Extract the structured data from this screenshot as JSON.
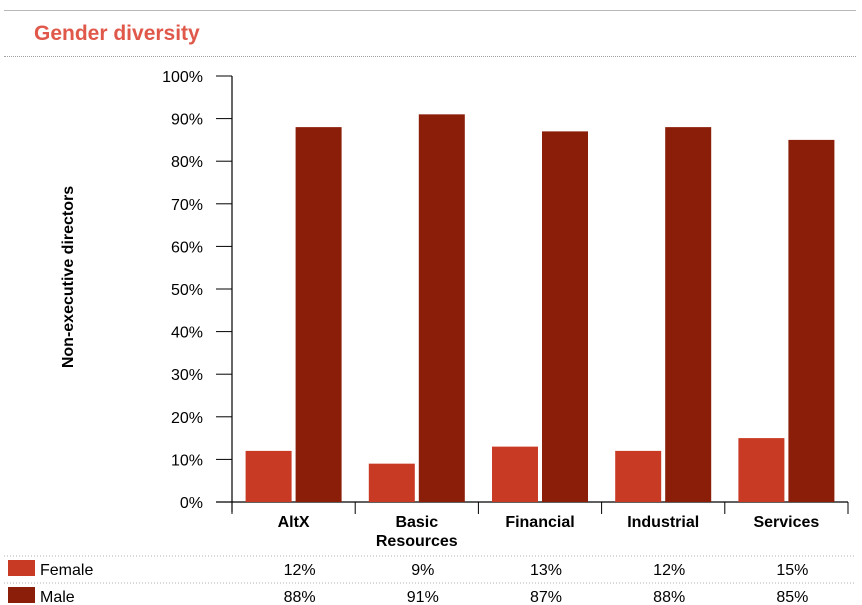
{
  "title": "Gender diversity",
  "colors": {
    "title": "#e0584a",
    "female": "#c93a24",
    "male": "#8b1e08"
  },
  "chart_data": {
    "type": "bar",
    "categories": [
      "AltX",
      "Basic Resources",
      "Financial",
      "Industrial",
      "Services"
    ],
    "category_lines": [
      [
        "AltX"
      ],
      [
        "Basic",
        "Resources"
      ],
      [
        "Financial"
      ],
      [
        "Industrial"
      ],
      [
        "Services"
      ]
    ],
    "series": [
      {
        "name": "Female",
        "values": [
          12,
          9,
          13,
          12,
          15
        ],
        "labels": [
          "12%",
          "9%",
          "13%",
          "12%",
          "15%"
        ]
      },
      {
        "name": "Male",
        "values": [
          88,
          91,
          87,
          88,
          85
        ],
        "labels": [
          "88%",
          "91%",
          "87%",
          "88%",
          "85%"
        ]
      }
    ],
    "ylabel": "Non-executive directors",
    "ylim": [
      0,
      100
    ],
    "yticks": [
      "0%",
      "10%",
      "20%",
      "30%",
      "40%",
      "50%",
      "60%",
      "70%",
      "80%",
      "90%",
      "100%"
    ],
    "legend_position": "data-table-below"
  }
}
